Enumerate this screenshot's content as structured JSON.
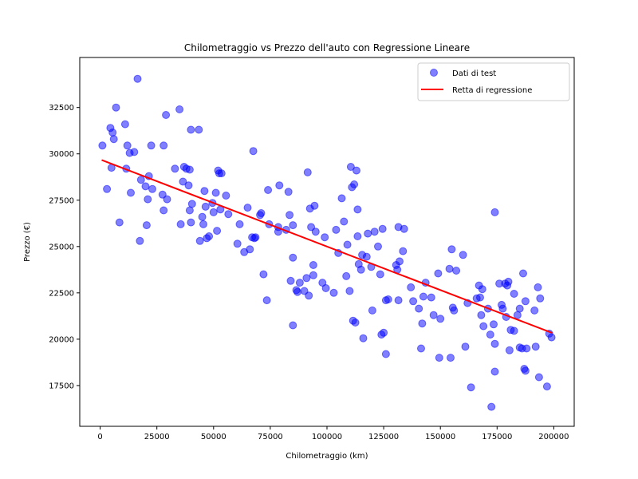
{
  "chart_data": {
    "type": "scatter",
    "title": "Chilometraggio vs Prezzo dell'auto con Regressione Lineare",
    "xlabel": "Chilometraggio (km)",
    "ylabel": "Prezzo (€)",
    "xlim": [
      -9000,
      209000
    ],
    "ylim": [
      15300,
      35200
    ],
    "xticks": [
      0,
      25000,
      50000,
      75000,
      100000,
      125000,
      150000,
      175000,
      200000
    ],
    "xtick_labels": [
      "0",
      "25000",
      "50000",
      "75000",
      "100000",
      "125000",
      "150000",
      "175000",
      "200000"
    ],
    "yticks": [
      17500,
      20000,
      22500,
      25000,
      27500,
      30000,
      32500
    ],
    "ytick_labels": [
      "17500",
      "20000",
      "22500",
      "25000",
      "27500",
      "30000",
      "32500"
    ],
    "grid": false,
    "legend_position": "top-right",
    "series": [
      {
        "name": "Dati di test",
        "kind": "scatter",
        "color": "#0000ff",
        "alpha": 0.5,
        "points": [
          [
            1000,
            30450
          ],
          [
            3000,
            28100
          ],
          [
            4500,
            31400
          ],
          [
            5000,
            29250
          ],
          [
            5500,
            31150
          ],
          [
            6000,
            30800
          ],
          [
            7000,
            32500
          ],
          [
            8500,
            26300
          ],
          [
            11000,
            31600
          ],
          [
            11500,
            29200
          ],
          [
            12000,
            30450
          ],
          [
            13000,
            30050
          ],
          [
            13500,
            27900
          ],
          [
            15000,
            30100
          ],
          [
            16500,
            34050
          ],
          [
            17500,
            25300
          ],
          [
            18000,
            28600
          ],
          [
            20000,
            28250
          ],
          [
            20500,
            26150
          ],
          [
            21000,
            27550
          ],
          [
            21500,
            28800
          ],
          [
            22500,
            30450
          ],
          [
            23000,
            28100
          ],
          [
            27500,
            27800
          ],
          [
            28000,
            26950
          ],
          [
            28000,
            30450
          ],
          [
            29000,
            32100
          ],
          [
            29500,
            27550
          ],
          [
            33000,
            29200
          ],
          [
            35000,
            32400
          ],
          [
            35500,
            26200
          ],
          [
            36500,
            28500
          ],
          [
            37000,
            29300
          ],
          [
            38000,
            29200
          ],
          [
            39000,
            28300
          ],
          [
            39500,
            29150
          ],
          [
            39500,
            26950
          ],
          [
            40000,
            31300
          ],
          [
            40000,
            26300
          ],
          [
            40500,
            27300
          ],
          [
            43500,
            31300
          ],
          [
            44000,
            25300
          ],
          [
            45000,
            26600
          ],
          [
            45500,
            26200
          ],
          [
            46000,
            28000
          ],
          [
            46500,
            27150
          ],
          [
            47000,
            25450
          ],
          [
            48000,
            25550
          ],
          [
            49500,
            27350
          ],
          [
            50000,
            26850
          ],
          [
            51000,
            27900
          ],
          [
            51500,
            25850
          ],
          [
            52000,
            29100
          ],
          [
            52500,
            28950
          ],
          [
            53000,
            27000
          ],
          [
            53500,
            28950
          ],
          [
            55500,
            27750
          ],
          [
            56500,
            26750
          ],
          [
            60500,
            25150
          ],
          [
            61500,
            26200
          ],
          [
            63500,
            24700
          ],
          [
            65000,
            27100
          ],
          [
            66000,
            24850
          ],
          [
            67000,
            25500
          ],
          [
            67500,
            30150
          ],
          [
            68000,
            25450
          ],
          [
            68500,
            25500
          ],
          [
            70500,
            26700
          ],
          [
            71000,
            26800
          ],
          [
            72000,
            23500
          ],
          [
            73500,
            22100
          ],
          [
            74000,
            28050
          ],
          [
            74500,
            26200
          ],
          [
            78500,
            25800
          ],
          [
            78500,
            26050
          ],
          [
            79000,
            28300
          ],
          [
            82000,
            25900
          ],
          [
            83000,
            27950
          ],
          [
            83500,
            26700
          ],
          [
            84000,
            23150
          ],
          [
            85000,
            26150
          ],
          [
            85000,
            24400
          ],
          [
            85000,
            20750
          ],
          [
            86500,
            22650
          ],
          [
            87000,
            22550
          ],
          [
            88000,
            23050
          ],
          [
            90000,
            22600
          ],
          [
            91000,
            23300
          ],
          [
            91500,
            29000
          ],
          [
            92000,
            22350
          ],
          [
            92500,
            27050
          ],
          [
            93000,
            26050
          ],
          [
            94000,
            24000
          ],
          [
            94000,
            23450
          ],
          [
            94500,
            27200
          ],
          [
            95000,
            25800
          ],
          [
            98000,
            23050
          ],
          [
            99000,
            25500
          ],
          [
            99500,
            22750
          ],
          [
            103000,
            22500
          ],
          [
            104000,
            25900
          ],
          [
            105000,
            24650
          ],
          [
            106500,
            27600
          ],
          [
            107500,
            26350
          ],
          [
            108500,
            23400
          ],
          [
            109000,
            25100
          ],
          [
            110000,
            22600
          ],
          [
            110500,
            29300
          ],
          [
            111000,
            28200
          ],
          [
            111500,
            21000
          ],
          [
            112000,
            28350
          ],
          [
            112500,
            20900
          ],
          [
            113000,
            29100
          ],
          [
            113500,
            27000
          ],
          [
            113500,
            25550
          ],
          [
            114000,
            24050
          ],
          [
            115000,
            23750
          ],
          [
            115500,
            24550
          ],
          [
            116000,
            20050
          ],
          [
            117500,
            24450
          ],
          [
            118000,
            25700
          ],
          [
            119500,
            23900
          ],
          [
            120000,
            21550
          ],
          [
            121000,
            25800
          ],
          [
            122500,
            25000
          ],
          [
            123500,
            23500
          ],
          [
            124000,
            20250
          ],
          [
            124500,
            25950
          ],
          [
            125000,
            20350
          ],
          [
            126000,
            22100
          ],
          [
            126000,
            19200
          ],
          [
            127000,
            22150
          ],
          [
            130500,
            24000
          ],
          [
            131000,
            23750
          ],
          [
            131500,
            22100
          ],
          [
            131500,
            26050
          ],
          [
            132000,
            24200
          ],
          [
            133500,
            24750
          ],
          [
            134000,
            25950
          ],
          [
            137000,
            22800
          ],
          [
            138000,
            22050
          ],
          [
            140500,
            21650
          ],
          [
            141500,
            19500
          ],
          [
            142000,
            20850
          ],
          [
            142500,
            22300
          ],
          [
            143500,
            23050
          ],
          [
            146000,
            22250
          ],
          [
            147000,
            21300
          ],
          [
            149000,
            23550
          ],
          [
            149500,
            19000
          ],
          [
            150000,
            21100
          ],
          [
            154000,
            23800
          ],
          [
            154500,
            19000
          ],
          [
            155000,
            24850
          ],
          [
            155500,
            21700
          ],
          [
            156000,
            21550
          ],
          [
            157000,
            23700
          ],
          [
            160000,
            24550
          ],
          [
            161000,
            19600
          ],
          [
            162000,
            21950
          ],
          [
            163500,
            17400
          ],
          [
            166000,
            22200
          ],
          [
            167000,
            22900
          ],
          [
            167500,
            22250
          ],
          [
            168000,
            21300
          ],
          [
            168500,
            22700
          ],
          [
            169000,
            20700
          ],
          [
            171000,
            21650
          ],
          [
            172000,
            20250
          ],
          [
            172500,
            16350
          ],
          [
            173500,
            20800
          ],
          [
            174000,
            18250
          ],
          [
            174000,
            19750
          ],
          [
            174000,
            26850
          ],
          [
            176000,
            23000
          ],
          [
            177000,
            21850
          ],
          [
            177500,
            21650
          ],
          [
            178500,
            23000
          ],
          [
            179000,
            21200
          ],
          [
            179500,
            22900
          ],
          [
            180000,
            23100
          ],
          [
            180500,
            19400
          ],
          [
            181000,
            20500
          ],
          [
            182500,
            20450
          ],
          [
            182500,
            22450
          ],
          [
            184000,
            21300
          ],
          [
            185000,
            19550
          ],
          [
            185000,
            21650
          ],
          [
            186000,
            19500
          ],
          [
            186500,
            23550
          ],
          [
            187000,
            18400
          ],
          [
            187500,
            18300
          ],
          [
            187500,
            22050
          ],
          [
            188000,
            19500
          ],
          [
            191500,
            21550
          ],
          [
            192000,
            19600
          ],
          [
            193000,
            22800
          ],
          [
            193500,
            17950
          ],
          [
            194000,
            22200
          ],
          [
            197000,
            17450
          ],
          [
            198000,
            20300
          ],
          [
            199000,
            20100
          ]
        ]
      },
      {
        "name": "Retta di regressione",
        "kind": "line",
        "color": "#ff0000",
        "points": [
          [
            1000,
            29650
          ],
          [
            199000,
            20350
          ]
        ]
      }
    ]
  }
}
